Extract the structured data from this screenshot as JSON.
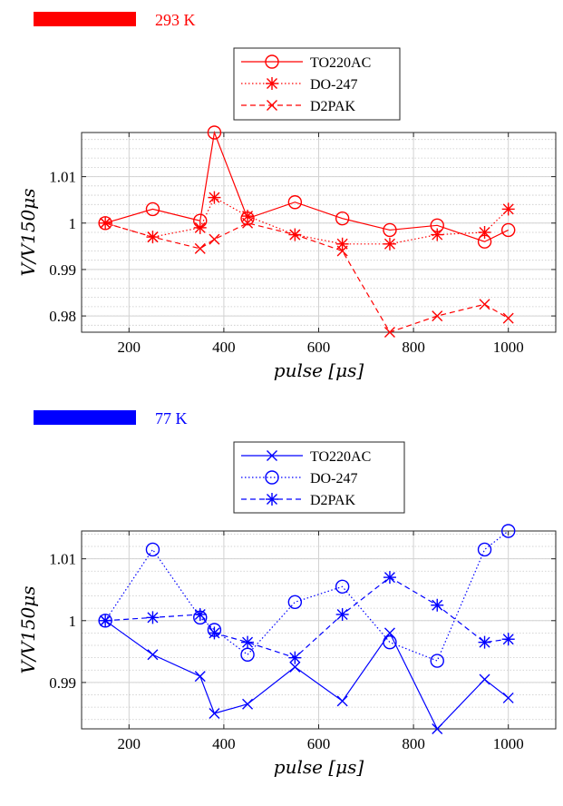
{
  "chart_data": [
    {
      "type": "line",
      "temperature_label": "293 K",
      "color": "#ff0000",
      "xlabel": "pulse [μs]",
      "ylabel": "V/V150μs",
      "xlim": [
        100,
        1100
      ],
      "ylim": [
        0.9765,
        1.0195
      ],
      "xticks": [
        200,
        400,
        600,
        800,
        1000
      ],
      "yticks": [
        0.98,
        0.99,
        1,
        1.01
      ],
      "ytick_labels": [
        "0.98",
        "0.99",
        "1",
        "1.01"
      ],
      "xtick_labels": [
        "200",
        "400",
        "600",
        "800",
        "1000"
      ],
      "grid": true,
      "legend_position": "top-center (above plot)",
      "x": [
        150,
        250,
        350,
        380,
        450,
        550,
        650,
        750,
        850,
        950,
        1000
      ],
      "series": [
        {
          "name": "TO220AC",
          "line": "solid",
          "marker": "circle",
          "values": [
            1.0,
            1.003,
            1.0005,
            1.0195,
            1.001,
            1.0045,
            1.001,
            0.9985,
            0.9995,
            0.996,
            0.9985
          ]
        },
        {
          "name": "DO-247",
          "line": "dotted",
          "marker": "asterisk",
          "values": [
            1.0,
            0.997,
            0.999,
            1.0055,
            1.0015,
            0.9975,
            0.9955,
            0.9955,
            0.9975,
            0.998,
            1.003
          ]
        },
        {
          "name": "D2PAK",
          "line": "dashed",
          "marker": "x",
          "values": [
            1.0,
            0.997,
            0.9945,
            0.9965,
            1.0,
            0.9975,
            0.994,
            0.9765,
            0.98,
            0.9825,
            0.9795
          ]
        }
      ]
    },
    {
      "type": "line",
      "temperature_label": "77 K",
      "color": "#0000ff",
      "xlabel": "pulse [μs]",
      "ylabel": "V/V150μs",
      "xlim": [
        100,
        1100
      ],
      "ylim": [
        0.9825,
        1.0145
      ],
      "xticks": [
        200,
        400,
        600,
        800,
        1000
      ],
      "yticks": [
        0.99,
        1,
        1.01
      ],
      "ytick_labels": [
        "0.99",
        "1",
        "1.01"
      ],
      "xtick_labels": [
        "200",
        "400",
        "600",
        "800",
        "1000"
      ],
      "grid": true,
      "legend_position": "top-center (above plot)",
      "x": [
        150,
        250,
        350,
        380,
        450,
        550,
        650,
        750,
        850,
        950,
        1000
      ],
      "series": [
        {
          "name": "TO220AC",
          "line": "solid",
          "marker": "x",
          "values": [
            1.0,
            0.9945,
            0.991,
            0.985,
            0.9865,
            0.9925,
            0.987,
            0.998,
            0.9825,
            0.9905,
            0.9875
          ]
        },
        {
          "name": "DO-247",
          "line": "dotted",
          "marker": "circle",
          "values": [
            1.0,
            1.0115,
            1.0005,
            0.9985,
            0.9945,
            1.003,
            1.0055,
            0.9965,
            0.9935,
            1.0115,
            1.0145
          ]
        },
        {
          "name": "D2PAK",
          "line": "dashed",
          "marker": "asterisk",
          "values": [
            1.0,
            1.0005,
            1.001,
            0.998,
            0.9965,
            0.994,
            1.001,
            1.007,
            1.0025,
            0.9965,
            0.997
          ]
        }
      ]
    }
  ]
}
